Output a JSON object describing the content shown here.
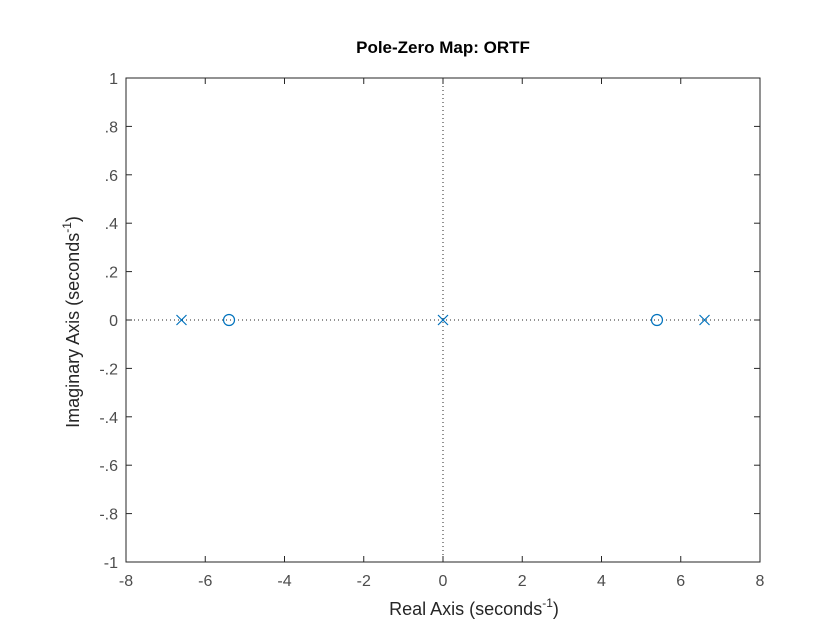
{
  "chart_data": {
    "type": "scatter",
    "title": "Pole-Zero Map: ORTF",
    "xlabel": "Real Axis (seconds",
    "ylabel": "Imaginary Axis (seconds",
    "unit_exponent": "-1",
    "xlabel_suffix": ")",
    "ylabel_suffix": ")",
    "xlim": [
      -8,
      8
    ],
    "ylim": [
      -1,
      1
    ],
    "xticks": [
      -8,
      -6,
      -4,
      -2,
      0,
      2,
      4,
      6,
      8
    ],
    "yticks": [
      -1,
      -0.8,
      -0.6,
      -0.4,
      -0.2,
      0,
      0.2,
      0.4,
      0.6,
      0.8,
      1
    ],
    "grid": false,
    "reference_lines": {
      "x": 0,
      "y": 0,
      "style": "dotted"
    },
    "marker_color": "#0072BD",
    "series": [
      {
        "marker": "x",
        "points": [
          [
            -6.6,
            0
          ],
          [
            0,
            0
          ],
          [
            6.6,
            0
          ]
        ]
      },
      {
        "marker": "o",
        "points": [
          [
            -5.4,
            0
          ],
          [
            5.4,
            0
          ]
        ]
      }
    ]
  }
}
